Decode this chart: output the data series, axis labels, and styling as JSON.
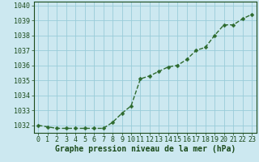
{
  "x": [
    0,
    1,
    2,
    3,
    4,
    5,
    6,
    7,
    8,
    9,
    10,
    11,
    12,
    13,
    14,
    15,
    16,
    17,
    18,
    19,
    20,
    21,
    22,
    23
  ],
  "y": [
    1032.0,
    1031.9,
    1031.8,
    1031.8,
    1031.8,
    1031.8,
    1031.8,
    1031.8,
    1032.2,
    1032.8,
    1033.3,
    1035.1,
    1035.3,
    1035.6,
    1035.9,
    1036.0,
    1036.4,
    1037.0,
    1037.2,
    1038.0,
    1038.7,
    1038.7,
    1039.1,
    1039.4
  ],
  "line_color": "#2d6a2d",
  "marker_color": "#2d6a2d",
  "bg_color": "#cce8f0",
  "grid_color": "#99ccd9",
  "axis_label_color": "#1a4a1a",
  "tick_label_color": "#1a4a1a",
  "xlabel": "Graphe pression niveau de la mer (hPa)",
  "ylim": [
    1031.5,
    1040.25
  ],
  "yticks": [
    1032,
    1033,
    1034,
    1035,
    1036,
    1037,
    1038,
    1039,
    1040
  ],
  "xlim": [
    -0.5,
    23.5
  ],
  "xticks": [
    0,
    1,
    2,
    3,
    4,
    5,
    6,
    7,
    8,
    9,
    10,
    11,
    12,
    13,
    14,
    15,
    16,
    17,
    18,
    19,
    20,
    21,
    22,
    23
  ],
  "xlabel_fontsize": 7.0,
  "tick_fontsize": 6.0,
  "linewidth": 1.0,
  "markersize": 2.5
}
